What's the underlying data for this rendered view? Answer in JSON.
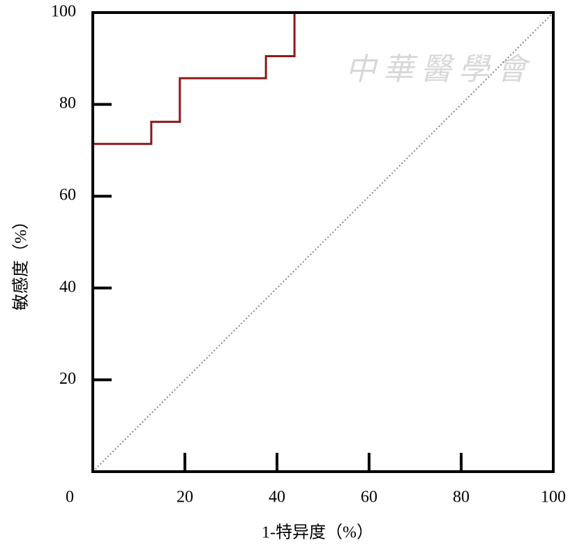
{
  "chart_data": {
    "type": "line",
    "x_label": "1-特异度（%）",
    "y_label": "敏感度（%）",
    "watermark": "中華醫學會",
    "xlim": [
      0,
      100
    ],
    "ylim": [
      0,
      100
    ],
    "xticks": [
      0,
      20,
      40,
      60,
      80,
      100
    ],
    "yticks": [
      20,
      40,
      60,
      80,
      100
    ],
    "x": [
      0,
      0,
      12.7,
      12.7,
      18.9,
      18.9,
      37.6,
      37.6,
      43.8,
      43.8,
      100
    ],
    "series": [
      {
        "color": "#8b1a1a",
        "values": [
          0,
          71.4,
          71.4,
          76.2,
          76.2,
          85.7,
          85.7,
          90.5,
          90.5,
          100,
          100
        ]
      }
    ]
  }
}
